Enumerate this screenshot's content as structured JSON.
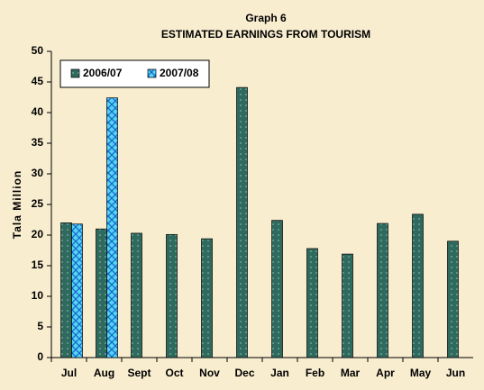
{
  "chart_data": {
    "type": "bar",
    "title": "Graph 6",
    "subtitle": "ESTIMATED EARNINGS FROM TOURISM",
    "y_label": "Tala Million",
    "categories": [
      "Jul",
      "Aug",
      "Sept",
      "Oct",
      "Nov",
      "Dec",
      "Jan",
      "Feb",
      "Mar",
      "Apr",
      "May",
      "Jun"
    ],
    "series": [
      {
        "name": "2006/07",
        "color": "#2f6a5e",
        "values": [
          22,
          21,
          20.3,
          20.1,
          19.4,
          44.1,
          22.4,
          17.8,
          16.9,
          21.9,
          23.4,
          19
        ]
      },
      {
        "name": "2007/08",
        "color": "#4fd8f0",
        "values": [
          21.8,
          42.4,
          null,
          null,
          null,
          null,
          null,
          null,
          null,
          null,
          null,
          null
        ]
      }
    ],
    "ylim": [
      0,
      50
    ],
    "yticks": [
      0,
      5,
      10,
      15,
      20,
      25,
      30,
      35,
      40,
      45,
      50
    ],
    "grid": false,
    "legend": "top-left"
  }
}
